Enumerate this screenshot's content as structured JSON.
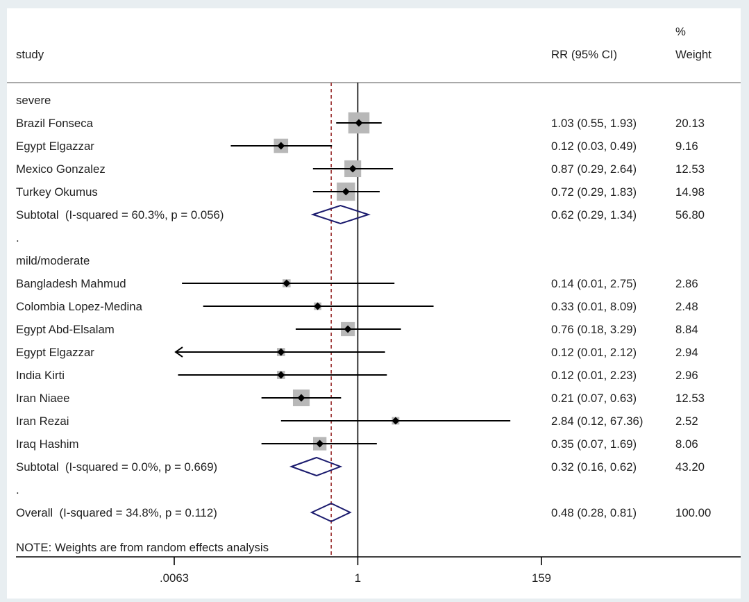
{
  "header": {
    "study": "study",
    "effect": "RR (95% CI)",
    "weight_pct": "%",
    "weight": "Weight"
  },
  "note": "NOTE: Weights are from random effects analysis",
  "colors": {
    "background": "#e8eef1",
    "panel": "#ffffff",
    "text": "#1f1f1f",
    "box": "#b8b8b8",
    "diamond": "#1b1b6e",
    "overall_line": "#9a2b2b"
  },
  "chart_data": {
    "type": "scatter",
    "log_x": true,
    "xlim": [
      0.0063,
      159
    ],
    "xticks": [
      0.0063,
      1,
      159
    ],
    "xtick_labels": [
      ".0063",
      "1",
      "159"
    ],
    "null_line": 1,
    "overall_line": 0.48,
    "groups": [
      {
        "label": "severe",
        "studies": [
          {
            "study": "Brazil Fonseca",
            "rr": 1.03,
            "lo": 0.55,
            "hi": 1.93,
            "ci": "1.03 (0.55, 1.93)",
            "weight": "20.13"
          },
          {
            "study": "Egypt Elgazzar",
            "rr": 0.12,
            "lo": 0.03,
            "hi": 0.49,
            "ci": "0.12 (0.03, 0.49)",
            "weight": "9.16"
          },
          {
            "study": "Mexico Gonzalez",
            "rr": 0.87,
            "lo": 0.29,
            "hi": 2.64,
            "ci": "0.87 (0.29, 2.64)",
            "weight": "12.53"
          },
          {
            "study": "Turkey Okumus",
            "rr": 0.72,
            "lo": 0.29,
            "hi": 1.83,
            "ci": "0.72 (0.29, 1.83)",
            "weight": "14.98"
          }
        ],
        "subtotal": {
          "label": "Subtotal  (I-squared = 60.3%, p = 0.056)",
          "rr": 0.62,
          "lo": 0.29,
          "hi": 1.34,
          "ci": "0.62 (0.29, 1.34)",
          "weight": "56.80"
        },
        "spacer": "."
      },
      {
        "label": "mild/moderate",
        "studies": [
          {
            "study": "Bangladesh Mahmud",
            "rr": 0.14,
            "lo": 0.0078,
            "hi": 2.75,
            "ci": "0.14 (0.01, 2.75)",
            "weight": "2.86"
          },
          {
            "study": "Colombia Lopez-Medina",
            "rr": 0.33,
            "lo": 0.014,
            "hi": 8.09,
            "ci": "0.33 (0.01, 8.09)",
            "weight": "2.48"
          },
          {
            "study": "Egypt Abd-Elsalam",
            "rr": 0.76,
            "lo": 0.18,
            "hi": 3.29,
            "ci": "0.76 (0.18, 3.29)",
            "weight": "8.84"
          },
          {
            "study": "Egypt Elgazzar",
            "rr": 0.12,
            "lo": 0.0055,
            "hi": 2.12,
            "ci": "0.12 (0.01, 2.12)",
            "weight": "2.94"
          },
          {
            "study": "India Kirti",
            "rr": 0.12,
            "lo": 0.007,
            "hi": 2.23,
            "ci": "0.12 (0.01, 2.23)",
            "weight": "2.96"
          },
          {
            "study": "Iran Niaee",
            "rr": 0.21,
            "lo": 0.07,
            "hi": 0.63,
            "ci": "0.21 (0.07, 0.63)",
            "weight": "12.53"
          },
          {
            "study": "Iran Rezai",
            "rr": 2.84,
            "lo": 0.12,
            "hi": 67.36,
            "ci": "2.84 (0.12, 67.36)",
            "weight": "2.52"
          },
          {
            "study": "Iraq Hashim",
            "rr": 0.35,
            "lo": 0.07,
            "hi": 1.69,
            "ci": "0.35 (0.07, 1.69)",
            "weight": "8.06"
          }
        ],
        "subtotal": {
          "label": "Subtotal  (I-squared = 0.0%, p = 0.669)",
          "rr": 0.32,
          "lo": 0.16,
          "hi": 0.62,
          "ci": "0.32 (0.16, 0.62)",
          "weight": "43.20"
        },
        "spacer": "."
      }
    ],
    "overall": {
      "label": "Overall  (I-squared = 34.8%, p = 0.112)",
      "rr": 0.48,
      "lo": 0.28,
      "hi": 0.81,
      "ci": "0.48 (0.28, 0.81)",
      "weight": "100.00"
    }
  }
}
